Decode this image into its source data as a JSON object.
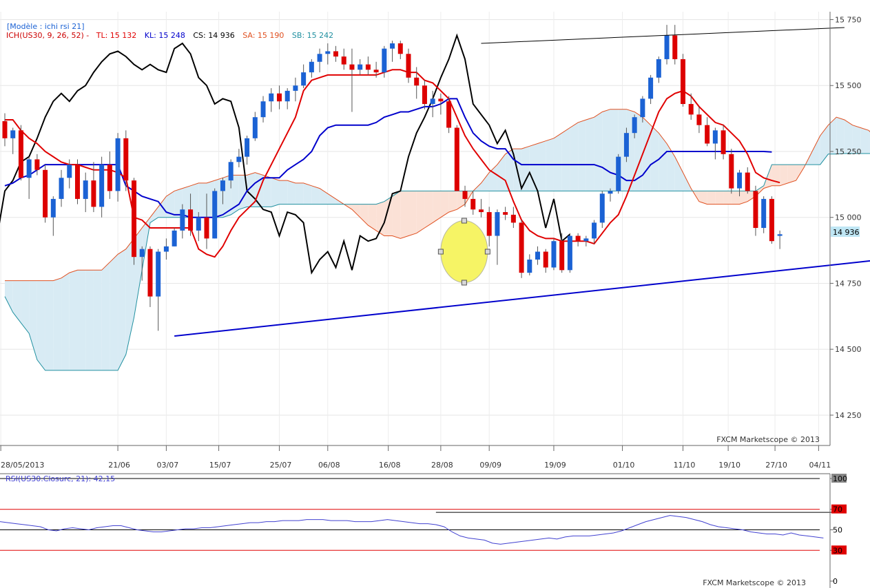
{
  "main_panel": {
    "header": {
      "model": "[Modèle : ichi rsi 21]",
      "ich": "ICH(US30, 9, 26, 52) -",
      "tl": "TL: 15 132",
      "kl": "KL: 15 248",
      "cs": "CS: 14 936",
      "sa": "SA: 15 190",
      "sb": "SB: 15 242"
    },
    "last_price_tag": "14 936",
    "y_ticks": [
      "15 750",
      "15 500",
      "15 250",
      "15 000",
      "14 750",
      "14 500",
      "14 250"
    ],
    "x_ticks": [
      "28/05/2013",
      "21/06",
      "03/07",
      "15/07",
      "25/07",
      "06/08",
      "16/08",
      "28/08",
      "09/09",
      "19/09",
      "01/10",
      "11/10",
      "19/10",
      "27/10",
      "04/11"
    ],
    "copyright": "FXCM Marketscope © 2013"
  },
  "rsi_panel": {
    "label": "RSI(US30.Closurc, 21): 42,15",
    "y_ticks": [
      "100",
      "70",
      "50",
      "30",
      "0"
    ],
    "copyright": "FXCM Marketscope © 2013"
  },
  "colors": {
    "tenkan": "#e00000",
    "kijun": "#0000cc",
    "chikou": "#000000",
    "senkou_a": "#e05020",
    "senkou_b": "#2090a0",
    "cloud_bull": "#d8ebf4",
    "cloud_bear": "#fbe1d6",
    "candle_up": "#1b62d4",
    "candle_down": "#dd0000",
    "trendline": "#0000cc",
    "rsi_line": "#4040d0",
    "rsi_band": "#e00000",
    "highlight": "#f4f24a",
    "price_tag": "#bfe6f4"
  },
  "chart_data": [
    {
      "type": "candlestick",
      "title": "ICH(US30, 9, 26, 52)",
      "ylim": [
        14135,
        15780
      ],
      "ohlc": [
        [
          15365,
          15395,
          15270,
          15300
        ],
        [
          15300,
          15340,
          15240,
          15330
        ],
        [
          15330,
          15350,
          15140,
          15150
        ],
        [
          15150,
          15230,
          15070,
          15220
        ],
        [
          15220,
          15240,
          15160,
          15180
        ],
        [
          15180,
          15200,
          14980,
          15000
        ],
        [
          15000,
          15080,
          14930,
          15070
        ],
        [
          15070,
          15180,
          15040,
          15150
        ],
        [
          15150,
          15220,
          15110,
          15200
        ],
        [
          15200,
          15220,
          15050,
          15070
        ],
        [
          15070,
          15170,
          15020,
          15140
        ],
        [
          15140,
          15210,
          15020,
          15040
        ],
        [
          15040,
          15230,
          15000,
          15200
        ],
        [
          15200,
          15250,
          15070,
          15100
        ],
        [
          15100,
          15320,
          15060,
          15300
        ],
        [
          15300,
          15330,
          15100,
          15140
        ],
        [
          15140,
          15150,
          14820,
          14850
        ],
        [
          14850,
          14890,
          14760,
          14880
        ],
        [
          14880,
          14890,
          14660,
          14700
        ],
        [
          14700,
          14880,
          14570,
          14870
        ],
        [
          14870,
          14920,
          14840,
          14890
        ],
        [
          14890,
          14960,
          14890,
          14950
        ],
        [
          14950,
          15050,
          14920,
          15030
        ],
        [
          15030,
          15090,
          14930,
          14950
        ],
        [
          14950,
          15020,
          14910,
          15000
        ],
        [
          15000,
          15090,
          14880,
          14920
        ],
        [
          14920,
          15110,
          14920,
          15100
        ],
        [
          15100,
          15150,
          15050,
          15140
        ],
        [
          15140,
          15220,
          15110,
          15210
        ],
        [
          15210,
          15260,
          15190,
          15230
        ],
        [
          15230,
          15310,
          15200,
          15300
        ],
        [
          15300,
          15400,
          15290,
          15380
        ],
        [
          15380,
          15460,
          15360,
          15440
        ],
        [
          15440,
          15490,
          15400,
          15470
        ],
        [
          15470,
          15500,
          15410,
          15440
        ],
        [
          15440,
          15490,
          15410,
          15480
        ],
        [
          15480,
          15530,
          15440,
          15500
        ],
        [
          15500,
          15580,
          15490,
          15550
        ],
        [
          15550,
          15600,
          15530,
          15590
        ],
        [
          15590,
          15640,
          15550,
          15620
        ],
        [
          15620,
          15660,
          15580,
          15630
        ],
        [
          15630,
          15650,
          15590,
          15610
        ],
        [
          15610,
          15640,
          15560,
          15580
        ],
        [
          15580,
          15640,
          15400,
          15560
        ],
        [
          15560,
          15600,
          15540,
          15580
        ],
        [
          15580,
          15610,
          15540,
          15560
        ],
        [
          15560,
          15590,
          15530,
          15550
        ],
        [
          15550,
          15650,
          15530,
          15640
        ],
        [
          15640,
          15670,
          15590,
          15660
        ],
        [
          15660,
          15670,
          15600,
          15620
        ],
        [
          15620,
          15640,
          15510,
          15530
        ],
        [
          15530,
          15570,
          15450,
          15500
        ],
        [
          15500,
          15520,
          15410,
          15430
        ],
        [
          15430,
          15480,
          15380,
          15450
        ],
        [
          15450,
          15470,
          15390,
          15440
        ],
        [
          15440,
          15460,
          15320,
          15340
        ],
        [
          15340,
          15350,
          15100,
          15100
        ],
        [
          15100,
          15120,
          15040,
          15070
        ],
        [
          15070,
          15100,
          15010,
          15030
        ],
        [
          15030,
          15070,
          15000,
          15020
        ],
        [
          15020,
          15040,
          14890,
          14930
        ],
        [
          14930,
          15030,
          14820,
          15020
        ],
        [
          15020,
          15040,
          14990,
          15010
        ],
        [
          15010,
          15040,
          14960,
          14980
        ],
        [
          14980,
          14990,
          14770,
          14790
        ],
        [
          14790,
          14860,
          14780,
          14840
        ],
        [
          14840,
          14890,
          14820,
          14870
        ],
        [
          14870,
          14880,
          14790,
          14810
        ],
        [
          14810,
          14920,
          14800,
          14910
        ],
        [
          14910,
          14940,
          14790,
          14800
        ],
        [
          14800,
          14940,
          14790,
          14930
        ],
        [
          14930,
          14940,
          14890,
          14910
        ],
        [
          14910,
          14930,
          14890,
          14920
        ],
        [
          14920,
          14990,
          14900,
          14980
        ],
        [
          14980,
          15100,
          14960,
          15090
        ],
        [
          15090,
          15110,
          15060,
          15100
        ],
        [
          15100,
          15240,
          15090,
          15230
        ],
        [
          15230,
          15340,
          15210,
          15320
        ],
        [
          15320,
          15390,
          15300,
          15380
        ],
        [
          15380,
          15460,
          15360,
          15450
        ],
        [
          15450,
          15540,
          15430,
          15530
        ],
        [
          15530,
          15610,
          15510,
          15600
        ],
        [
          15600,
          15730,
          15580,
          15690
        ],
        [
          15690,
          15730,
          15580,
          15600
        ],
        [
          15600,
          15620,
          15420,
          15430
        ],
        [
          15430,
          15470,
          15370,
          15390
        ],
        [
          15390,
          15420,
          15320,
          15350
        ],
        [
          15350,
          15380,
          15270,
          15280
        ],
        [
          15280,
          15340,
          15220,
          15330
        ],
        [
          15330,
          15350,
          15220,
          15240
        ],
        [
          15240,
          15260,
          15090,
          15110
        ],
        [
          15110,
          15180,
          15080,
          15170
        ],
        [
          15170,
          15190,
          15090,
          15100
        ],
        [
          15100,
          15120,
          14930,
          14960
        ],
        [
          14960,
          15080,
          14940,
          15070
        ],
        [
          15070,
          15080,
          14900,
          14910
        ],
        [
          14930,
          14950,
          14880,
          14936
        ]
      ],
      "tenkan": [
        15370,
        15370,
        15330,
        15300,
        15280,
        15250,
        15230,
        15210,
        15200,
        15200,
        15190,
        15180,
        15180,
        15180,
        15170,
        15150,
        15000,
        14990,
        14960,
        14960,
        14960,
        14960,
        14960,
        14960,
        14880,
        14860,
        14850,
        14890,
        14950,
        15000,
        15030,
        15060,
        15140,
        15200,
        15260,
        15320,
        15380,
        15480,
        15520,
        15530,
        15540,
        15540,
        15540,
        15540,
        15540,
        15540,
        15540,
        15550,
        15560,
        15560,
        15550,
        15550,
        15520,
        15510,
        15480,
        15450,
        15380,
        15310,
        15260,
        15220,
        15180,
        15160,
        15140,
        15060,
        14990,
        14950,
        14930,
        14920,
        14920,
        14910,
        14910,
        14910,
        14910,
        14900,
        14940,
        14980,
        15010,
        15080,
        15160,
        15240,
        15320,
        15400,
        15450,
        15470,
        15480,
        15460,
        15420,
        15390,
        15360,
        15350,
        15320,
        15290,
        15240,
        15170,
        15150,
        15140,
        15132
      ],
      "kijun": [
        15120,
        15130,
        15150,
        15160,
        15180,
        15200,
        15200,
        15200,
        15200,
        15200,
        15200,
        15200,
        15200,
        15200,
        15200,
        15120,
        15100,
        15080,
        15070,
        15060,
        15020,
        15010,
        15010,
        15000,
        15000,
        15000,
        15000,
        15010,
        15030,
        15050,
        15100,
        15130,
        15150,
        15150,
        15150,
        15180,
        15200,
        15220,
        15250,
        15310,
        15340,
        15350,
        15350,
        15350,
        15350,
        15350,
        15360,
        15380,
        15390,
        15400,
        15400,
        15410,
        15420,
        15420,
        15430,
        15450,
        15450,
        15380,
        15320,
        15290,
        15270,
        15260,
        15260,
        15220,
        15200,
        15200,
        15200,
        15200,
        15200,
        15200,
        15200,
        15200,
        15200,
        15200,
        15190,
        15170,
        15160,
        15140,
        15140,
        15160,
        15200,
        15220,
        15250,
        15250,
        15250,
        15250,
        15250,
        15250,
        15250,
        15250,
        15250,
        15250,
        15250,
        15250,
        15250,
        15248
      ],
      "senkou_a": [
        14760,
        14760,
        14760,
        14760,
        14760,
        14760,
        14760,
        14770,
        14790,
        14800,
        14800,
        14800,
        14800,
        14830,
        14860,
        14880,
        14920,
        14960,
        15000,
        15040,
        15080,
        15100,
        15110,
        15120,
        15130,
        15130,
        15140,
        15150,
        15160,
        15160,
        15160,
        15170,
        15160,
        15150,
        15140,
        15140,
        15130,
        15130,
        15120,
        15110,
        15090,
        15070,
        15050,
        15030,
        15000,
        14970,
        14950,
        14930,
        14930,
        14920,
        14930,
        14940,
        14960,
        14980,
        15000,
        15020,
        15030,
        15050,
        15100,
        15130,
        15170,
        15200,
        15240,
        15260,
        15260,
        15270,
        15280,
        15290,
        15300,
        15320,
        15340,
        15360,
        15370,
        15380,
        15400,
        15410,
        15410,
        15410,
        15400,
        15380,
        15350,
        15320,
        15280,
        15230,
        15170,
        15110,
        15060,
        15050,
        15050,
        15050,
        15050,
        15050,
        15060,
        15080,
        15110,
        15120,
        15120,
        15130,
        15140,
        15190,
        15250,
        15310,
        15350,
        15380,
        15370,
        15350,
        15340,
        15330,
        15300,
        15280,
        15250,
        15220,
        15210,
        15200,
        15190
      ],
      "senkou_b": [
        14700,
        14640,
        14600,
        14560,
        14460,
        14420,
        14420,
        14420,
        14420,
        14420,
        14420,
        14420,
        14420,
        14420,
        14420,
        14480,
        14620,
        14800,
        14980,
        15000,
        15000,
        15000,
        15000,
        15000,
        15000,
        15000,
        15000,
        15000,
        15010,
        15030,
        15040,
        15040,
        15040,
        15040,
        15050,
        15050,
        15050,
        15050,
        15050,
        15050,
        15050,
        15050,
        15050,
        15050,
        15050,
        15050,
        15050,
        15060,
        15080,
        15100,
        15100,
        15100,
        15100,
        15100,
        15100,
        15100,
        15100,
        15100,
        15100,
        15100,
        15100,
        15100,
        15100,
        15100,
        15100,
        15100,
        15100,
        15100,
        15100,
        15100,
        15100,
        15100,
        15100,
        15100,
        15100,
        15100,
        15100,
        15100,
        15100,
        15100,
        15100,
        15100,
        15100,
        15100,
        15100,
        15100,
        15100,
        15100,
        15100,
        15100,
        15100,
        15100,
        15100,
        15100,
        15120,
        15200,
        15200,
        15200,
        15200,
        15200,
        15200,
        15200,
        15240,
        15240,
        15242,
        15242,
        15242,
        15242,
        15242,
        15242,
        15242,
        15242,
        15242,
        15242,
        15242
      ],
      "trendlines": [
        {
          "from": [
            21,
            14550
          ],
          "to": [
            148,
            14970
          ]
        },
        {
          "from": [
            59,
            15660
          ],
          "to": [
            104,
            15720
          ]
        }
      ]
    },
    {
      "type": "line",
      "title": "RSI(US30.Closurc, 21): 42,15",
      "ylim": [
        0,
        100
      ],
      "levels": [
        70,
        50,
        30
      ],
      "values": [
        58,
        57,
        56,
        55,
        54,
        53,
        50,
        49,
        51,
        52,
        51,
        50,
        52,
        53,
        54,
        54,
        52,
        50,
        49,
        48,
        48,
        49,
        50,
        51,
        51,
        52,
        52,
        53,
        54,
        55,
        56,
        57,
        57,
        58,
        58,
        59,
        59,
        59,
        60,
        60,
        60,
        59,
        59,
        59,
        58,
        58,
        58,
        59,
        60,
        59,
        58,
        57,
        56,
        56,
        55,
        53,
        48,
        44,
        42,
        41,
        40,
        37,
        36,
        37,
        38,
        39,
        40,
        41,
        42,
        41,
        43,
        44,
        44,
        44,
        45,
        46,
        47,
        49,
        52,
        55,
        58,
        60,
        62,
        64,
        63,
        62,
        60,
        58,
        55,
        53,
        52,
        51,
        50,
        48,
        47,
        46,
        46,
        45,
        47,
        45,
        44,
        43,
        42
      ],
      "annotation": {
        "from_index": 54,
        "to_index": 103,
        "value": 67
      }
    }
  ]
}
